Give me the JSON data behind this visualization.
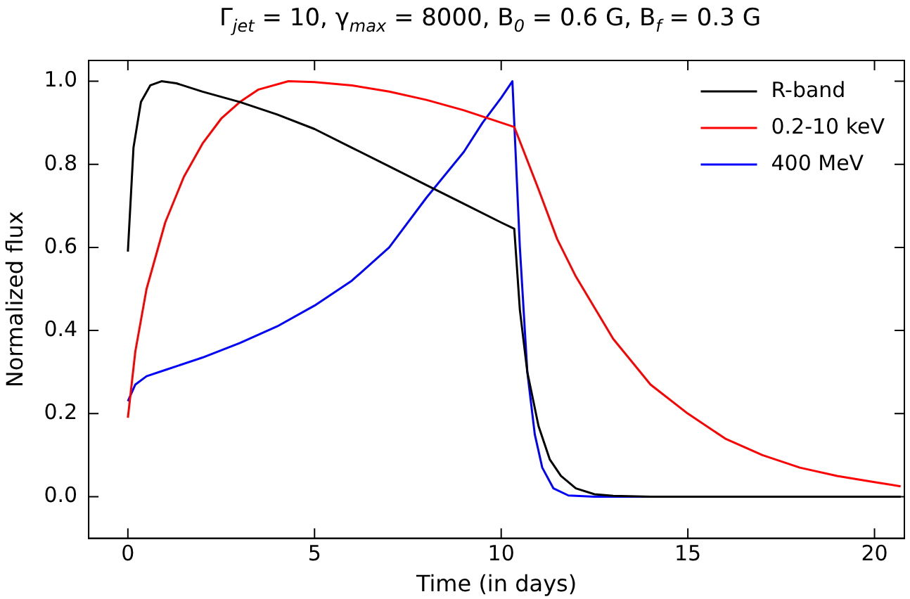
{
  "chart_data": {
    "type": "line",
    "title": "Γ$_{jet}$ = 10, γ$_{max}$ = 8000, B$_{0}$ = 0.6 G, B$_{f}$ = 0.3 G",
    "xlabel": "Time (in days)",
    "ylabel": "Normalized flux",
    "xlim": [
      -1.05,
      20.8
    ],
    "xticks": [
      0,
      5,
      10,
      15,
      20
    ],
    "ylim": [
      -0.1,
      1.05
    ],
    "yticks": [
      {
        "value": 0,
        "label": "0.0"
      },
      0.2,
      0.4,
      0.6,
      0.8,
      {
        "value": 1,
        "label": "1.0"
      }
    ],
    "grid": false,
    "legend": "top right",
    "marker": "none",
    "line_style": "solid",
    "series": [
      {
        "name": "R-band",
        "color": "#000000",
        "x": [
          0,
          0.15,
          0.35,
          0.6,
          0.9,
          1.3,
          2,
          3,
          4,
          5,
          6,
          7,
          8,
          9,
          10,
          10.35,
          10.5,
          10.7,
          11,
          11.3,
          11.6,
          12,
          12.5,
          13,
          14,
          20.7
        ],
        "values": [
          0.59,
          0.84,
          0.95,
          0.99,
          1.0,
          0.995,
          0.975,
          0.95,
          0.92,
          0.885,
          0.84,
          0.795,
          0.75,
          0.705,
          0.66,
          0.645,
          0.45,
          0.3,
          0.17,
          0.09,
          0.05,
          0.02,
          0.006,
          0.002,
          0,
          0
        ]
      },
      {
        "name": "0.2-10 keV",
        "color": "#ff0000",
        "x": [
          0,
          0.2,
          0.5,
          1,
          1.5,
          2,
          2.5,
          3,
          3.5,
          4.3,
          5,
          6,
          7,
          8,
          9,
          10.35,
          11,
          11.5,
          12,
          13,
          14,
          15,
          16,
          17,
          18,
          19,
          20,
          20.7
        ],
        "values": [
          0.19,
          0.35,
          0.5,
          0.66,
          0.77,
          0.85,
          0.91,
          0.95,
          0.98,
          1.0,
          0.998,
          0.99,
          0.975,
          0.955,
          0.93,
          0.89,
          0.74,
          0.62,
          0.53,
          0.38,
          0.27,
          0.2,
          0.14,
          0.1,
          0.07,
          0.05,
          0.035,
          0.025
        ]
      },
      {
        "name": "400 MeV",
        "color": "#0000ff",
        "x": [
          0,
          0.2,
          0.5,
          1,
          2,
          3,
          4,
          5,
          6,
          7,
          8,
          9,
          9.5,
          10,
          10.3,
          10.5,
          10.7,
          10.9,
          11.1,
          11.4,
          11.8,
          12.5,
          20.7
        ],
        "values": [
          0.23,
          0.27,
          0.29,
          0.305,
          0.335,
          0.37,
          0.41,
          0.46,
          0.52,
          0.6,
          0.72,
          0.83,
          0.9,
          0.96,
          1.0,
          0.6,
          0.3,
          0.15,
          0.07,
          0.02,
          0.003,
          0,
          0
        ]
      }
    ]
  }
}
